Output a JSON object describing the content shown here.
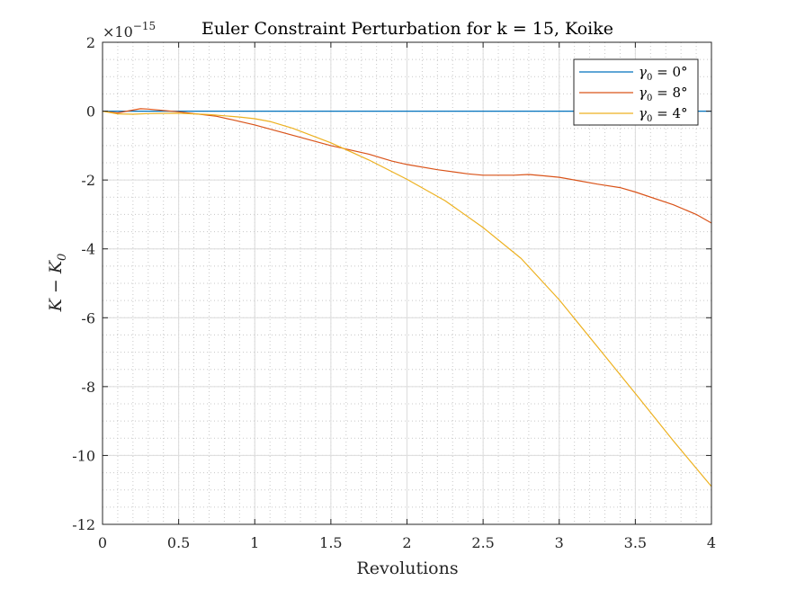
{
  "chart_data": {
    "type": "line",
    "title": "Euler Constraint Perturbation for k = 15, Koike",
    "xlabel": "Revolutions",
    "ylabel": "K − K0",
    "ylabel_main": "K − K",
    "ylabel_sub": "0",
    "exponent_label": "×10",
    "exponent_power": "−15",
    "xlim": [
      0,
      4
    ],
    "ylim": [
      -12,
      2
    ],
    "y_scale": 1e-15,
    "x_ticks": [
      0,
      0.5,
      1,
      1.5,
      2,
      2.5,
      3,
      3.5,
      4
    ],
    "x_tick_labels": [
      "0",
      "0.5",
      "1",
      "1.5",
      "2",
      "2.5",
      "3",
      "3.5",
      "4"
    ],
    "y_ticks": [
      2,
      0,
      -2,
      -4,
      -6,
      -8,
      -10,
      -12
    ],
    "y_tick_labels": [
      "2",
      "0",
      "-2",
      "-4",
      "-6",
      "-8",
      "-10",
      "-12"
    ],
    "grid": true,
    "minor_grid": true,
    "legend_position": "top-right",
    "series": [
      {
        "name": "γ0 = 0°",
        "legend_symbol": "γ",
        "legend_sub": "0",
        "legend_rest": " = 0°",
        "color": "#0072BD",
        "x": [
          0,
          4
        ],
        "y": [
          0,
          0
        ]
      },
      {
        "name": "γ0 = 8°",
        "legend_symbol": "γ",
        "legend_sub": "0",
        "legend_rest": " = 8°",
        "color": "#D95319",
        "x": [
          0,
          0.1,
          0.2,
          0.25,
          0.3,
          0.4,
          0.5,
          0.6,
          0.75,
          0.85,
          1.0,
          1.25,
          1.5,
          1.75,
          1.9,
          2.0,
          2.2,
          2.4,
          2.5,
          2.7,
          2.8,
          2.9,
          3.0,
          3.1,
          3.25,
          3.4,
          3.5,
          3.75,
          3.9,
          4.0
        ],
        "y": [
          0,
          -0.05,
          0.03,
          0.07,
          0.06,
          0.02,
          -0.02,
          -0.07,
          -0.15,
          -0.25,
          -0.4,
          -0.7,
          -1.0,
          -1.25,
          -1.45,
          -1.55,
          -1.7,
          -1.82,
          -1.86,
          -1.86,
          -1.84,
          -1.88,
          -1.92,
          -2.0,
          -2.12,
          -2.22,
          -2.35,
          -2.72,
          -3.0,
          -3.25
        ]
      },
      {
        "name": "γ0 = 4°",
        "legend_symbol": "γ",
        "legend_sub": "0",
        "legend_rest": " = 4°",
        "color": "#EDB120",
        "x": [
          0,
          0.1,
          0.2,
          0.3,
          0.5,
          0.7,
          0.9,
          1.0,
          1.1,
          1.25,
          1.5,
          1.75,
          2.0,
          2.25,
          2.5,
          2.75,
          3.0,
          3.25,
          3.5,
          3.75,
          4.0
        ],
        "y": [
          0,
          -0.08,
          -0.09,
          -0.07,
          -0.06,
          -0.1,
          -0.17,
          -0.22,
          -0.3,
          -0.5,
          -0.92,
          -1.42,
          -1.98,
          -2.6,
          -3.38,
          -4.28,
          -5.48,
          -6.84,
          -8.2,
          -9.58,
          -10.9
        ]
      }
    ]
  }
}
